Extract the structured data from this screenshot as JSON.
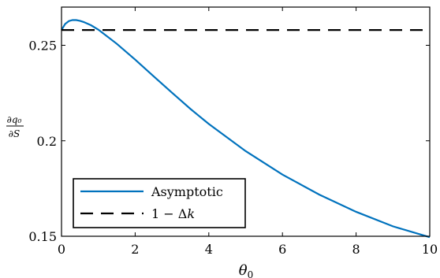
{
  "chart_data": {
    "type": "line",
    "xlabel": "θ0",
    "ylabel": "∂q0/∂S",
    "xlim": [
      0,
      10
    ],
    "ylim": [
      0.15,
      0.27
    ],
    "xticks": [
      0,
      2,
      4,
      6,
      8,
      10
    ],
    "xtick_labels": [
      "0",
      "2",
      "4",
      "6",
      "8",
      "10"
    ],
    "yticks": [
      0.15,
      0.2,
      0.25
    ],
    "ytick_labels": [
      "0.15",
      "0.2",
      "0.25"
    ],
    "grid": false,
    "legend_position": "bottom-left",
    "series": [
      {
        "name": "Asymptotic",
        "style": "solid",
        "color": "#0072BD",
        "x": [
          0,
          0.1,
          0.2,
          0.3,
          0.4,
          0.5,
          0.6,
          0.8,
          1.0,
          1.5,
          2.0,
          2.5,
          3.0,
          3.5,
          4.0,
          5.0,
          6.0,
          7.0,
          8.0,
          9.0,
          10.0
        ],
        "y": [
          0.258,
          0.2612,
          0.2627,
          0.2632,
          0.2632,
          0.2628,
          0.2622,
          0.2605,
          0.2582,
          0.2508,
          0.2425,
          0.2338,
          0.2252,
          0.2167,
          0.2088,
          0.1946,
          0.1823,
          0.1718,
          0.1628,
          0.1552,
          0.1495
        ]
      },
      {
        "name": "1 − Δk",
        "style": "dashed",
        "color": "#000000",
        "x": [
          0,
          10
        ],
        "y": [
          0.258,
          0.258
        ]
      }
    ]
  }
}
